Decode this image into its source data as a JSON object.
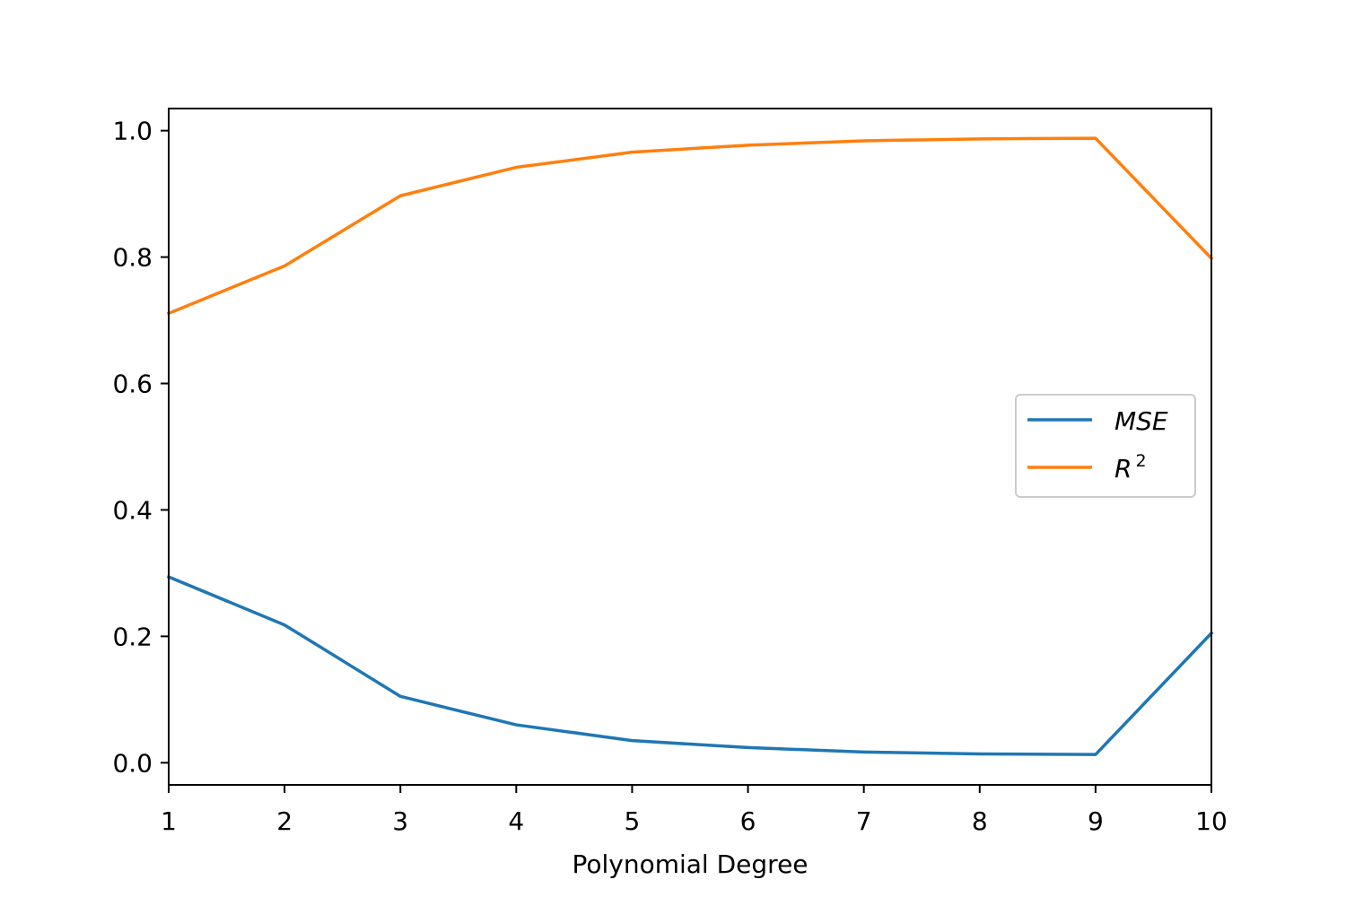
{
  "chart_data": {
    "type": "line",
    "title": "",
    "xlabel": "Polynomial Degree",
    "ylabel": "",
    "x": [
      1,
      2,
      3,
      4,
      5,
      6,
      7,
      8,
      9,
      10
    ],
    "xlim": [
      1,
      10
    ],
    "ylim": [
      -0.035,
      1.035
    ],
    "xticks": [
      "1",
      "2",
      "3",
      "4",
      "5",
      "6",
      "7",
      "8",
      "9",
      "10"
    ],
    "yticks": [
      "0.0",
      "0.2",
      "0.4",
      "0.6",
      "0.8",
      "1.0"
    ],
    "grid": false,
    "legend_position": "center-right",
    "series": [
      {
        "name": "MSE",
        "color": "#1f77b4",
        "values": [
          0.294,
          0.218,
          0.105,
          0.06,
          0.035,
          0.024,
          0.017,
          0.014,
          0.013,
          0.205
        ]
      },
      {
        "name": "R",
        "name_superscript": "2",
        "color": "#ff7f0e",
        "values": [
          0.711,
          0.786,
          0.897,
          0.942,
          0.966,
          0.977,
          0.984,
          0.987,
          0.988,
          0.798
        ]
      }
    ]
  }
}
